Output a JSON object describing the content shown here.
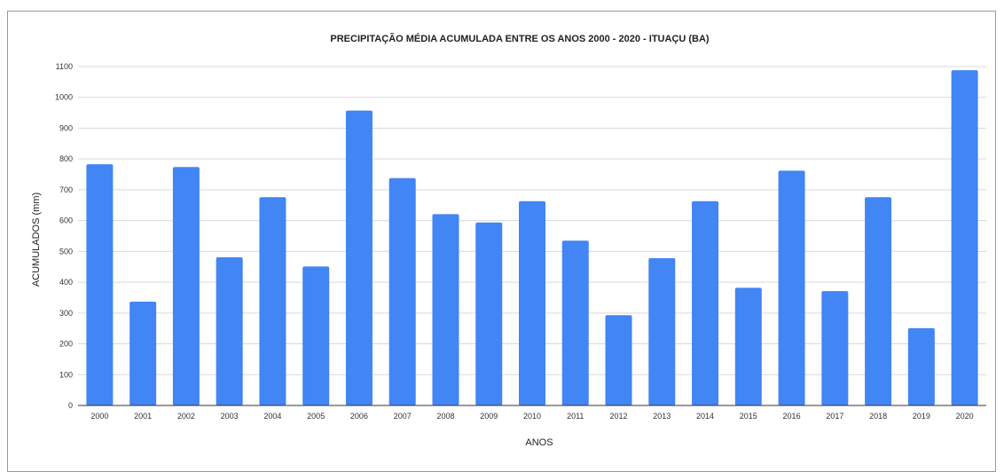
{
  "chart_data": {
    "type": "bar",
    "title": "PRECIPITAÇÃO MÉDIA ACUMULADA ENTRE OS ANOS 2000 - 2020 - ITUAÇU (BA)",
    "xlabel": "ANOS",
    "ylabel": "ACUMULADOS (mm)",
    "categories": [
      "2000",
      "2001",
      "2002",
      "2003",
      "2004",
      "2005",
      "2006",
      "2007",
      "2008",
      "2009",
      "2010",
      "2011",
      "2012",
      "2013",
      "2014",
      "2015",
      "2016",
      "2017",
      "2018",
      "2019",
      "2020"
    ],
    "values": [
      783,
      337,
      774,
      481,
      676,
      451,
      957,
      738,
      621,
      594,
      663,
      535,
      293,
      478,
      663,
      382,
      762,
      371,
      676,
      251,
      1088
    ],
    "ylim": [
      0,
      1100
    ],
    "yticks": [
      0,
      100,
      200,
      300,
      400,
      500,
      600,
      700,
      800,
      900,
      1000,
      1100
    ],
    "grid": true,
    "bar_color": "#4285f4",
    "grid_color": "#d9d9d9"
  }
}
